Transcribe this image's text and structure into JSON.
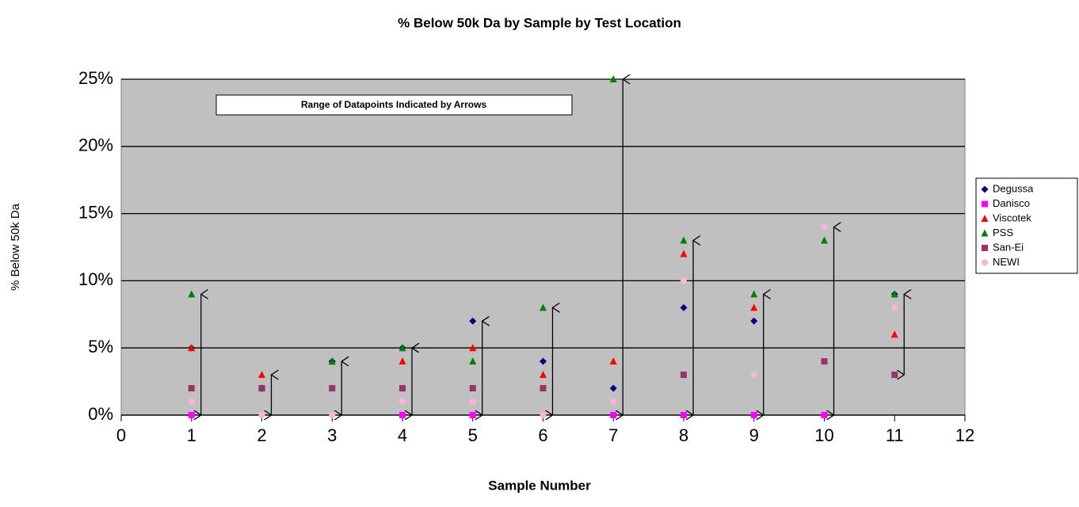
{
  "chart_data": {
    "type": "scatter",
    "title": "% Below 50k Da by Sample by Test Location",
    "x_label": "Sample Number",
    "y_label": "% Below 50k Da",
    "annotation": "Range of Datapoints Indicated by Arrows",
    "x": [
      1,
      2,
      3,
      4,
      5,
      6,
      7,
      8,
      9,
      10,
      11
    ],
    "series": [
      {
        "name": "Degussa",
        "color": "#000080",
        "marker": "diamond",
        "values": [
          5,
          2,
          4,
          5,
          7,
          4,
          2,
          8,
          7,
          null,
          9
        ]
      },
      {
        "name": "Danisco",
        "color": "#ff00ff",
        "marker": "square",
        "values": [
          0,
          null,
          null,
          0,
          0,
          null,
          0,
          0,
          0,
          0,
          null
        ]
      },
      {
        "name": "Viscotek",
        "color": "#ff0000",
        "marker": "triangle",
        "values": [
          5,
          3,
          4,
          4,
          5,
          3,
          4,
          12,
          8,
          null,
          6
        ]
      },
      {
        "name": "PSS",
        "color": "#008000",
        "marker": "triangle",
        "values": [
          9,
          2,
          4,
          5,
          4,
          8,
          25,
          13,
          9,
          13,
          9
        ]
      },
      {
        "name": "San-Ei",
        "color": "#993366",
        "marker": "square",
        "values": [
          2,
          2,
          2,
          2,
          2,
          2,
          null,
          3,
          null,
          4,
          3
        ]
      },
      {
        "name": "NEWI",
        "color": "#ffb3d9",
        "marker": "circle",
        "values": [
          1,
          0,
          0,
          1,
          1,
          0,
          1,
          10,
          3,
          14,
          8
        ]
      }
    ],
    "xlim": [
      0,
      12
    ],
    "xticks": [
      0,
      1,
      2,
      3,
      4,
      5,
      6,
      7,
      8,
      9,
      10,
      11,
      12
    ],
    "ylim": [
      0,
      25
    ],
    "yticks": [
      {
        "value": 0,
        "label": "0%"
      },
      {
        "value": 5,
        "label": "5%"
      },
      {
        "value": 10,
        "label": "10%"
      },
      {
        "value": 15,
        "label": "15%"
      },
      {
        "value": 20,
        "label": "20%"
      },
      {
        "value": 25,
        "label": "25%"
      }
    ],
    "grid": true,
    "plot_background": "#c0c0c0",
    "legend": "right"
  }
}
